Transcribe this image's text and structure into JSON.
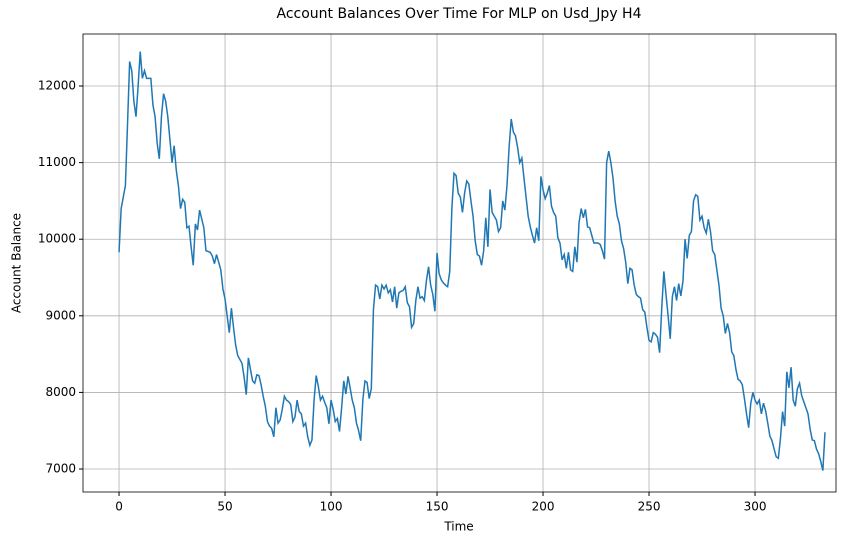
{
  "chart_data": {
    "type": "line",
    "title": "Account Balances Over Time For MLP on Usd_Jpy H4",
    "x_label": "Time",
    "y_label": "Account Balance",
    "x": [
      0,
      1,
      3,
      4,
      5,
      6,
      7,
      8,
      9,
      10,
      11,
      12,
      13,
      15,
      16,
      17,
      18,
      19,
      20,
      21,
      22,
      23,
      24,
      25,
      26,
      27,
      28,
      29,
      30,
      31,
      32,
      33,
      34,
      35,
      36,
      37,
      38,
      40,
      41,
      43,
      44,
      45,
      46,
      47,
      48,
      49,
      50,
      51,
      52,
      53,
      54,
      55,
      56,
      58,
      59,
      60,
      61,
      62,
      63,
      64,
      65,
      66,
      67,
      68,
      69,
      70,
      71,
      72,
      73,
      74,
      75,
      76,
      77,
      78,
      79,
      80,
      81,
      82,
      83,
      84,
      85,
      86,
      87,
      88,
      89,
      90,
      91,
      92,
      93,
      94,
      95,
      96,
      97,
      98,
      99,
      100,
      101,
      102,
      103,
      104,
      105,
      106,
      107,
      108,
      109,
      110,
      111,
      112,
      113,
      114,
      115,
      116,
      117,
      118,
      119,
      120,
      121,
      122,
      123,
      124,
      125,
      126,
      127,
      128,
      129,
      130,
      131,
      132,
      133,
      134,
      135,
      136,
      137,
      138,
      139,
      140,
      141,
      142,
      143,
      144,
      145,
      146,
      147,
      148,
      149,
      150,
      151,
      152,
      153,
      154,
      155,
      156,
      157,
      158,
      159,
      160,
      161,
      162,
      163,
      164,
      165,
      166,
      167,
      168,
      169,
      170,
      171,
      172,
      173,
      174,
      175,
      176,
      177,
      178,
      179,
      180,
      181,
      182,
      183,
      184,
      185,
      186,
      187,
      188,
      189,
      190,
      191,
      192,
      193,
      194,
      195,
      196,
      197,
      198,
      199,
      200,
      201,
      202,
      203,
      204,
      205,
      206,
      207,
      208,
      209,
      210,
      211,
      212,
      213,
      214,
      215,
      216,
      217,
      218,
      219,
      220,
      221,
      222,
      223,
      224,
      226,
      227,
      228,
      229,
      230,
      231,
      232,
      233,
      234,
      235,
      236,
      237,
      238,
      239,
      240,
      241,
      242,
      243,
      244,
      245,
      246,
      247,
      248,
      249,
      250,
      251,
      252,
      253,
      254,
      255,
      256,
      257,
      258,
      259,
      260,
      261,
      262,
      263,
      264,
      265,
      266,
      267,
      268,
      269,
      270,
      271,
      272,
      273,
      274,
      275,
      276,
      277,
      278,
      279,
      280,
      281,
      282,
      283,
      284,
      285,
      286,
      287,
      288,
      289,
      290,
      291,
      292,
      293,
      294,
      295,
      296,
      297,
      298,
      299,
      300,
      301,
      302,
      303,
      304,
      305,
      306,
      307,
      308,
      309,
      310,
      311,
      312,
      313,
      314,
      315,
      316,
      317,
      318,
      319,
      320,
      321,
      322,
      323,
      324,
      325,
      326,
      327,
      328,
      329,
      330,
      331,
      332,
      333
    ],
    "series": [
      {
        "name": "Account Balance",
        "color": "#1f77b4",
        "values": [
          9830,
          10400,
          10700,
          11500,
          12320,
          12200,
          11800,
          11600,
          12000,
          12450,
          12100,
          12200,
          12100,
          12100,
          11750,
          11600,
          11250,
          11050,
          11600,
          11900,
          11800,
          11600,
          11300,
          11000,
          11220,
          10900,
          10700,
          10400,
          10520,
          10480,
          10150,
          10170,
          9900,
          9660,
          10200,
          10120,
          10380,
          10150,
          9850,
          9830,
          9780,
          9680,
          9800,
          9700,
          9600,
          9350,
          9220,
          9000,
          8780,
          9100,
          8850,
          8620,
          8480,
          8380,
          8200,
          7970,
          8450,
          8300,
          8150,
          8120,
          8230,
          8220,
          8100,
          7950,
          7820,
          7620,
          7560,
          7530,
          7420,
          7800,
          7600,
          7640,
          7780,
          7950,
          7900,
          7880,
          7840,
          7620,
          7680,
          7900,
          7750,
          7720,
          7560,
          7600,
          7420,
          7310,
          7380,
          7900,
          8220,
          8080,
          7900,
          7950,
          7870,
          7800,
          7590,
          7900,
          7780,
          7620,
          7660,
          7490,
          7800,
          8150,
          7980,
          8210,
          8060,
          7900,
          7800,
          7600,
          7500,
          7370,
          7900,
          8150,
          8130,
          7920,
          8050,
          9080,
          9400,
          9380,
          9220,
          9400,
          9350,
          9400,
          9300,
          9340,
          9180,
          9380,
          9100,
          9300,
          9320,
          9330,
          9380,
          9170,
          9120,
          8850,
          8900,
          9200,
          9380,
          9230,
          9250,
          9200,
          9460,
          9640,
          9400,
          9280,
          9060,
          9820,
          9550,
          9470,
          9430,
          9400,
          9380,
          9580,
          10400,
          10860,
          10830,
          10600,
          10550,
          10350,
          10600,
          10760,
          10720,
          10500,
          10300,
          9980,
          9800,
          9780,
          9660,
          9850,
          10280,
          9900,
          10650,
          10350,
          10300,
          10250,
          10100,
          10150,
          10500,
          10380,
          10700,
          11200,
          11570,
          11400,
          11350,
          11200,
          11000,
          11060,
          10800,
          10550,
          10300,
          10160,
          10050,
          9950,
          10150,
          9980,
          10820,
          10650,
          10530,
          10600,
          10700,
          10430,
          10350,
          10300,
          10020,
          9950,
          9730,
          9800,
          9620,
          9830,
          9600,
          9580,
          9900,
          9700,
          10220,
          10400,
          10280,
          10390,
          10160,
          10150,
          10050,
          9950,
          9950,
          9930,
          9850,
          9740,
          11000,
          11150,
          11000,
          10800,
          10500,
          10300,
          10200,
          9980,
          9880,
          9700,
          9420,
          9620,
          9600,
          9400,
          9280,
          9250,
          9230,
          9080,
          9050,
          8850,
          8680,
          8660,
          8780,
          8760,
          8720,
          8520,
          9100,
          9580,
          9280,
          9000,
          8700,
          9250,
          9380,
          9200,
          9420,
          9260,
          9450,
          10000,
          9750,
          10050,
          10100,
          10500,
          10580,
          10560,
          10250,
          10300,
          10150,
          10080,
          10260,
          10100,
          9850,
          9800,
          9600,
          9400,
          9100,
          9000,
          8770,
          8900,
          8780,
          8530,
          8480,
          8300,
          8170,
          8150,
          8100,
          7920,
          7720,
          7540,
          7860,
          8000,
          7900,
          7850,
          7900,
          7720,
          7860,
          7760,
          7600,
          7430,
          7370,
          7260,
          7160,
          7140,
          7400,
          7750,
          7560,
          8270,
          8060,
          8330,
          7900,
          7820,
          8050,
          8120,
          7960,
          7880,
          7800,
          7720,
          7520,
          7380,
          7370,
          7260,
          7200,
          7100,
          6980,
          7480
        ]
      }
    ],
    "xlim": [
      -17,
      338.2
    ],
    "ylim": [
      6700,
      12679
    ],
    "xticks": [
      0,
      50,
      100,
      150,
      200,
      250,
      300
    ],
    "yticks": [
      7000,
      8000,
      9000,
      10000,
      11000,
      12000
    ],
    "grid": true
  }
}
